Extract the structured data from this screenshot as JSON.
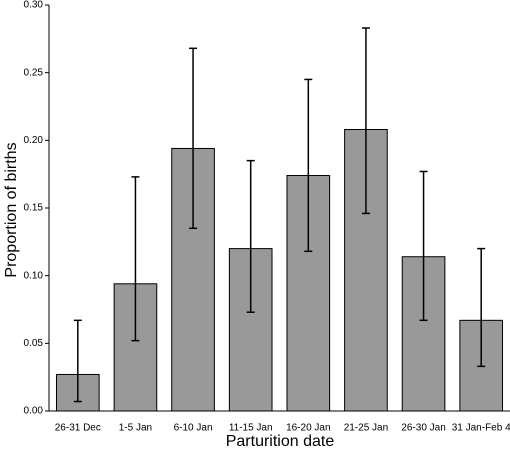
{
  "chart_data": {
    "type": "bar",
    "xlabel": "Parturition date",
    "ylabel": "Proportion of births",
    "categories": [
      "26-31 Dec",
      "1-5 Jan",
      "6-10 Jan",
      "11-15 Jan",
      "16-20 Jan",
      "21-25 Jan",
      "26-30 Jan",
      "31 Jan-Feb 4"
    ],
    "values": [
      0.027,
      0.094,
      0.194,
      0.12,
      0.174,
      0.208,
      0.114,
      0.067
    ],
    "error_lower": [
      0.007,
      0.052,
      0.135,
      0.073,
      0.118,
      0.146,
      0.067,
      0.033
    ],
    "error_upper": [
      0.067,
      0.173,
      0.268,
      0.185,
      0.245,
      0.283,
      0.177,
      0.12
    ],
    "color": "#999999",
    "ylim": [
      0,
      0.3
    ],
    "yticks": [
      {
        "value": 0,
        "label": "0.00"
      },
      {
        "value": 0.05,
        "label": "0.05"
      },
      {
        "value": 0.1,
        "label": "0.10"
      },
      {
        "value": 0.15,
        "label": "0.15"
      },
      {
        "value": 0.2,
        "label": "0.20"
      },
      {
        "value": 0.25,
        "label": "0.25"
      },
      {
        "value": 0.3,
        "label": "0.30"
      }
    ],
    "grid": false
  }
}
